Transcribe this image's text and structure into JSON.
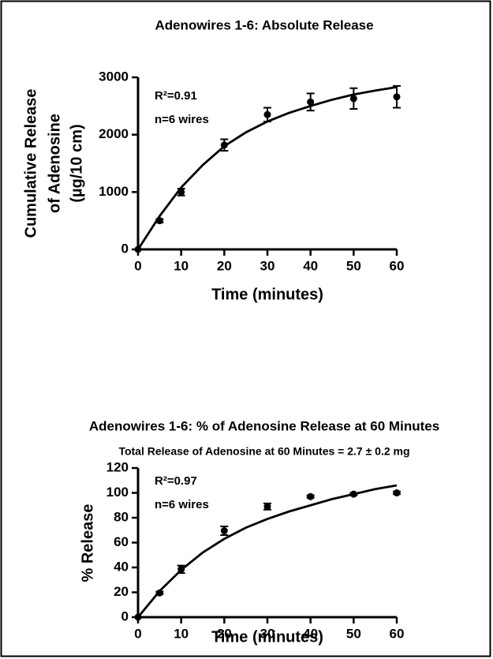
{
  "chart_data": [
    {
      "type": "scatter",
      "title": "Adenowires 1-6: Absolute Release",
      "xlabel": "Time (minutes)",
      "ylabel": [
        "Cumulative Release",
        "of Adenosine",
        "(µg/10 cm)"
      ],
      "annotations": [
        "R²=0.91",
        "n=6 wires"
      ],
      "x": [
        0,
        5,
        10,
        20,
        30,
        40,
        50,
        60
      ],
      "values": [
        0,
        500,
        1000,
        1820,
        2350,
        2570,
        2630,
        2660
      ],
      "errors": [
        0,
        30,
        60,
        100,
        120,
        150,
        180,
        190
      ],
      "fit": {
        "x": [
          0,
          5,
          10,
          15,
          20,
          25,
          30,
          35,
          40,
          45,
          50,
          55,
          60
        ],
        "values": [
          0,
          580,
          1080,
          1470,
          1800,
          2040,
          2230,
          2380,
          2500,
          2610,
          2700,
          2770,
          2830
        ]
      },
      "color": "#000000",
      "xlim": [
        0,
        60
      ],
      "xticks": [
        0,
        10,
        20,
        30,
        40,
        50,
        60
      ],
      "ylim": [
        0,
        3000
      ],
      "yticks": [
        0,
        1000,
        2000,
        3000
      ]
    },
    {
      "type": "scatter",
      "title": "Adenowires 1-6: % of Adenosine Release at 60 Minutes",
      "subtitle": "Total Release of Adenosine at 60 Minutes = 2.7 ± 0.2 mg",
      "xlabel": "Time (minutes)",
      "ylabel": [
        "% Release"
      ],
      "annotations": [
        "R²=0.97",
        "n=6 wires"
      ],
      "x": [
        0,
        5,
        10,
        20,
        30,
        40,
        50,
        60
      ],
      "values": [
        0,
        19.5,
        38.5,
        69.5,
        89,
        97,
        99,
        100
      ],
      "errors": [
        0,
        1,
        3,
        3.5,
        2.5,
        1,
        1,
        1
      ],
      "fit": {
        "x": [
          0,
          5,
          10,
          15,
          20,
          25,
          30,
          35,
          40,
          45,
          50,
          55,
          60
        ],
        "values": [
          0,
          21,
          38,
          52,
          63,
          72,
          79,
          85,
          90,
          95,
          99,
          103,
          106
        ]
      },
      "color": "#000000",
      "xlim": [
        0,
        60
      ],
      "xticks": [
        0,
        10,
        20,
        30,
        40,
        50,
        60
      ],
      "ylim": [
        0,
        120
      ],
      "yticks": [
        0,
        20,
        40,
        60,
        80,
        100,
        120
      ]
    }
  ]
}
